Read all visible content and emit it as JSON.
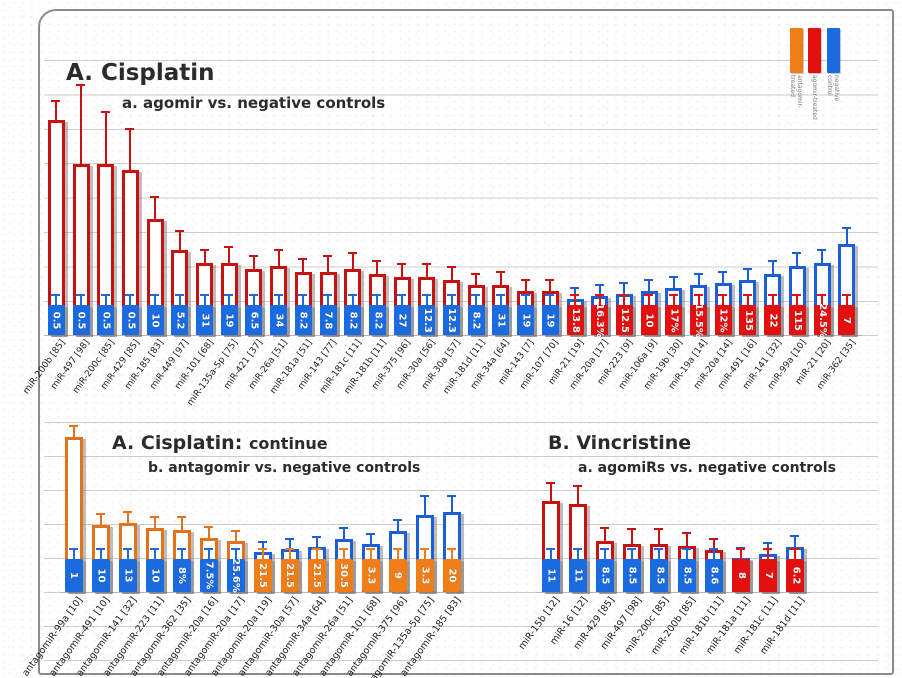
{
  "figure": {
    "description": "Bar chart figure comparing miRNA treatment vs negative controls",
    "accent_colors": {
      "red": "#df1010",
      "blue": "#1a6ae0",
      "orange": "#ef7d18"
    }
  },
  "colors": {
    "blue": "#1a6ae0",
    "red": "#e31010",
    "orange": "#ef7d18",
    "outline_red": "#c81212",
    "outline_blue": "#1b5ed6",
    "outline_orange": "#e2731a",
    "grid": "#cdcdcd"
  },
  "legend": {
    "items": [
      {
        "label": "antagomir-treated",
        "color": "#ef7d18"
      },
      {
        "label": "agomir-treated",
        "color": "#e31010"
      },
      {
        "label": "negative control",
        "color": "#1a6ae0"
      }
    ]
  },
  "chart_data": [
    {
      "type": "bar",
      "title": "A. Cisplatin",
      "subtitle": "a. agomir vs. negative controls",
      "ylabel": "",
      "note": "y-axis unlabeled; outline bar = higher condition (height_frac of plot), solid base bar prints fold value",
      "bars": [
        {
          "category": "miR-200b [85]",
          "value_label": "0.5",
          "base": "blue",
          "line": "red",
          "h": 0.78,
          "e": 0.05
        },
        {
          "category": "miR-497 [98]",
          "value_label": "0.5",
          "base": "blue",
          "line": "red",
          "h": 0.62,
          "e": 0.27
        },
        {
          "category": "miR-200c [85]",
          "value_label": "0.5",
          "base": "blue",
          "line": "red",
          "h": 0.62,
          "e": 0.17
        },
        {
          "category": "miR-429 [85]",
          "value_label": "0.5",
          "base": "blue",
          "line": "red",
          "h": 0.6,
          "e": 0.13
        },
        {
          "category": "miR-185 [83]",
          "value_label": "10",
          "base": "blue",
          "line": "red",
          "h": 0.42,
          "e": 0.06
        },
        {
          "category": "miR-449 [97]",
          "value_label": "5.2",
          "base": "blue",
          "line": "red",
          "h": 0.31,
          "e": 0.05
        },
        {
          "category": "miR-101 [68]",
          "value_label": "31",
          "base": "blue",
          "line": "red",
          "h": 0.26,
          "e": 0.03
        },
        {
          "category": "miR-135a-5p [75]",
          "value_label": "19",
          "base": "blue",
          "line": "red",
          "h": 0.26,
          "e": 0.04
        },
        {
          "category": "miR-421 [37]",
          "value_label": "6.5",
          "base": "blue",
          "line": "red",
          "h": 0.24,
          "e": 0.03
        },
        {
          "category": "miR-26a [51]",
          "value_label": "34",
          "base": "blue",
          "line": "red",
          "h": 0.25,
          "e": 0.04
        },
        {
          "category": "miR-181a [51]",
          "value_label": "8.2",
          "base": "blue",
          "line": "red",
          "h": 0.23,
          "e": 0.03
        },
        {
          "category": "miR-143 [77]",
          "value_label": "7.8",
          "base": "blue",
          "line": "red",
          "h": 0.23,
          "e": 0.04
        },
        {
          "category": "miR-181c [11]",
          "value_label": "8.2",
          "base": "blue",
          "line": "red",
          "h": 0.24,
          "e": 0.04
        },
        {
          "category": "miR-181b [11]",
          "value_label": "8.2",
          "base": "blue",
          "line": "red",
          "h": 0.22,
          "e": 0.03
        },
        {
          "category": "miR-375 [96]",
          "value_label": "27",
          "base": "blue",
          "line": "red",
          "h": 0.21,
          "e": 0.03
        },
        {
          "category": "miR-30a [56]",
          "value_label": "12.3",
          "base": "blue",
          "line": "red",
          "h": 0.21,
          "e": 0.03
        },
        {
          "category": "miR-30a [57]",
          "value_label": "12.3",
          "base": "blue",
          "line": "red",
          "h": 0.2,
          "e": 0.03
        },
        {
          "category": "miR-181d [11]",
          "value_label": "8.2",
          "base": "blue",
          "line": "red",
          "h": 0.18,
          "e": 0.02
        },
        {
          "category": "miR-34a [64]",
          "value_label": "31",
          "base": "blue",
          "line": "red",
          "h": 0.18,
          "e": 0.03
        },
        {
          "category": "miR-143 [7]",
          "value_label": "19",
          "base": "blue",
          "line": "red",
          "h": 0.16,
          "e": 0.02
        },
        {
          "category": "miR-107 [70]",
          "value_label": "19",
          "base": "blue",
          "line": "red",
          "h": 0.16,
          "e": 0.02
        },
        {
          "category": "miR-21 [19]",
          "value_label": "13.8",
          "base": "red",
          "line": "blue",
          "h": 0.13,
          "e": 0.02
        },
        {
          "category": "miR-20a [17]",
          "value_label": "16.3%",
          "base": "red",
          "line": "blue",
          "h": 0.14,
          "e": 0.02
        },
        {
          "category": "miR-223 [9]",
          "value_label": "12.5",
          "base": "red",
          "line": "blue",
          "h": 0.15,
          "e": 0.02
        },
        {
          "category": "miR-106a [9]",
          "value_label": "10",
          "base": "red",
          "line": "blue",
          "h": 0.16,
          "e": 0.02
        },
        {
          "category": "miR-19b [30]",
          "value_label": "17%",
          "base": "red",
          "line": "blue",
          "h": 0.17,
          "e": 0.02
        },
        {
          "category": "miR-19a [14]",
          "value_label": "15.5%",
          "base": "red",
          "line": "blue",
          "h": 0.18,
          "e": 0.02
        },
        {
          "category": "miR-20a [14]",
          "value_label": "12%",
          "base": "red",
          "line": "blue",
          "h": 0.19,
          "e": 0.02
        },
        {
          "category": "miR-491 [16]",
          "value_label": "135",
          "base": "red",
          "line": "blue",
          "h": 0.2,
          "e": 0.02
        },
        {
          "category": "miR-141 [32]",
          "value_label": "22",
          "base": "red",
          "line": "blue",
          "h": 0.22,
          "e": 0.03
        },
        {
          "category": "miR-99a [10]",
          "value_label": "115",
          "base": "red",
          "line": "blue",
          "h": 0.25,
          "e": 0.03
        },
        {
          "category": "miR-21 [20]",
          "value_label": "24.5%",
          "base": "red",
          "line": "blue",
          "h": 0.26,
          "e": 0.03
        },
        {
          "category": "miR-362 [35]",
          "value_label": "7",
          "base": "red",
          "line": "blue",
          "h": 0.33,
          "e": 0.04
        }
      ]
    },
    {
      "type": "bar",
      "title": "A. Cisplatin:",
      "title_continue": "continue",
      "subtitle": "b. antagomir vs. negative controls",
      "bars": [
        {
          "category": "antagomiR-99a [10]",
          "value_label": "1",
          "base": "blue",
          "line": "orange",
          "h": 0.97,
          "e": 0.04
        },
        {
          "category": "antagomiR-491 [10]",
          "value_label": "10",
          "base": "blue",
          "line": "orange",
          "h": 0.42,
          "e": 0.04
        },
        {
          "category": "antagomiR-141 [32]",
          "value_label": "13",
          "base": "blue",
          "line": "orange",
          "h": 0.43,
          "e": 0.04
        },
        {
          "category": "antagomiR-223 [11]",
          "value_label": "10",
          "base": "blue",
          "line": "orange",
          "h": 0.4,
          "e": 0.04
        },
        {
          "category": "antagomiR-362 [35]",
          "value_label": "8%",
          "base": "blue",
          "line": "orange",
          "h": 0.39,
          "e": 0.05
        },
        {
          "category": "antagomiR-20a [16]",
          "value_label": "7.5%",
          "base": "blue",
          "line": "orange",
          "h": 0.34,
          "e": 0.04
        },
        {
          "category": "antagomiR-20a [17]",
          "value_label": "25.6%",
          "base": "blue",
          "line": "orange",
          "h": 0.32,
          "e": 0.03
        },
        {
          "category": "antagomiR-20a [19]",
          "value_label": "21.5",
          "base": "orange",
          "line": "blue",
          "h": 0.25,
          "e": 0.03
        },
        {
          "category": "antagomiR-30a [57]",
          "value_label": "21.5",
          "base": "orange",
          "line": "blue",
          "h": 0.27,
          "e": 0.03
        },
        {
          "category": "antagomiR-34a [64]",
          "value_label": "21.5",
          "base": "orange",
          "line": "blue",
          "h": 0.28,
          "e": 0.03
        },
        {
          "category": "antagomiR-26a [51]",
          "value_label": "30.5",
          "base": "orange",
          "line": "blue",
          "h": 0.33,
          "e": 0.04
        },
        {
          "category": "antagomiR-101 [68]",
          "value_label": "3.3",
          "base": "orange",
          "line": "blue",
          "h": 0.3,
          "e": 0.03
        },
        {
          "category": "antagomiR-375 [96]",
          "value_label": "9",
          "base": "orange",
          "line": "blue",
          "h": 0.38,
          "e": 0.04
        },
        {
          "category": "antagomiR-135a-5p [75]",
          "value_label": "3.3",
          "base": "orange",
          "line": "blue",
          "h": 0.48,
          "e": 0.09
        },
        {
          "category": "antagomiR-185 [83]",
          "value_label": "20",
          "base": "orange",
          "line": "blue",
          "h": 0.5,
          "e": 0.07
        }
      ]
    },
    {
      "type": "bar",
      "title": "B. Vincristine",
      "subtitle": "a. agomiRs vs. negative controls",
      "bars": [
        {
          "category": "miR-15b [12]",
          "value_label": "11",
          "base": "blue",
          "line": "red",
          "h": 0.57,
          "e": 0.08
        },
        {
          "category": "miR-16 [12]",
          "value_label": "11",
          "base": "blue",
          "line": "red",
          "h": 0.55,
          "e": 0.08
        },
        {
          "category": "miR-429 [85]",
          "value_label": "8.5",
          "base": "blue",
          "line": "red",
          "h": 0.32,
          "e": 0.05
        },
        {
          "category": "miR-497 [98]",
          "value_label": "8.5",
          "base": "blue",
          "line": "red",
          "h": 0.3,
          "e": 0.06
        },
        {
          "category": "miR-200c [85]",
          "value_label": "8.5",
          "base": "blue",
          "line": "red",
          "h": 0.3,
          "e": 0.06
        },
        {
          "category": "miR-200b [85]",
          "value_label": "8.5",
          "base": "blue",
          "line": "red",
          "h": 0.29,
          "e": 0.05
        },
        {
          "category": "miR-181b [11]",
          "value_label": "8.6",
          "base": "blue",
          "line": "red",
          "h": 0.26,
          "e": 0.04
        },
        {
          "category": "miR-181a [11]",
          "value_label": "8",
          "base": "red",
          "line": "blue",
          "h": 0.21,
          "e": 0.03
        },
        {
          "category": "miR-181c [11]",
          "value_label": "7",
          "base": "red",
          "line": "blue",
          "h": 0.24,
          "e": 0.04
        },
        {
          "category": "miR-181d [11]",
          "value_label": "6.2",
          "base": "red",
          "line": "blue",
          "h": 0.28,
          "e": 0.04
        }
      ]
    }
  ]
}
